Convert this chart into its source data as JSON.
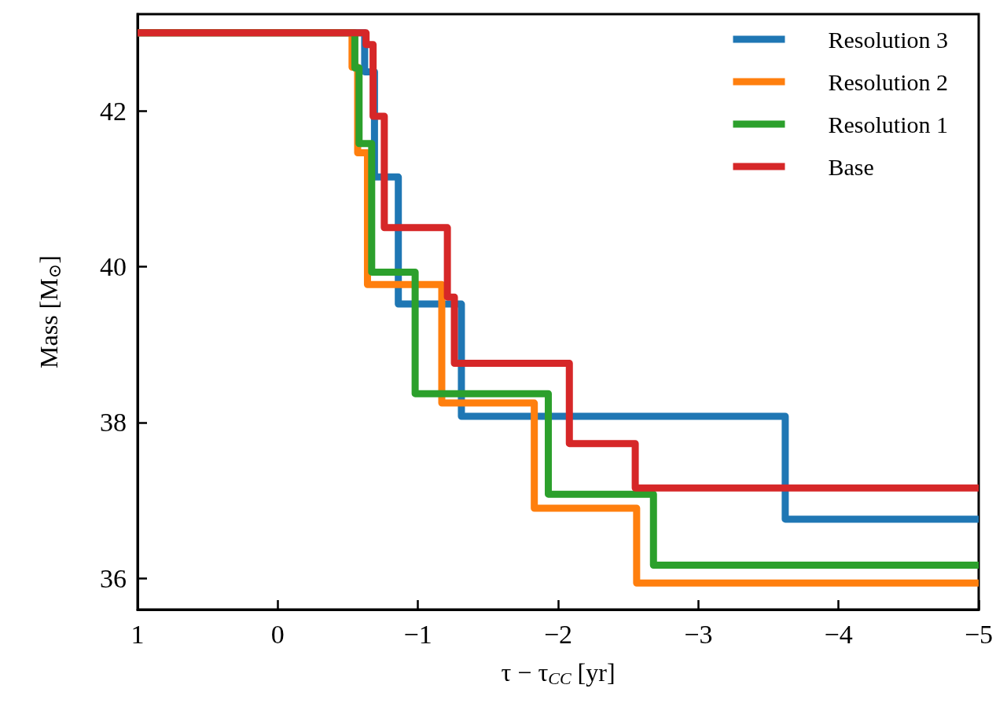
{
  "chart_data": {
    "type": "step",
    "xlabel": "τ − τ$_{CC}$ [yr]",
    "ylabel": "Mass [M$_{⊙}$]",
    "xlim": [
      1,
      -5
    ],
    "ylim": [
      35.6,
      43.24
    ],
    "xticks": [
      1,
      0,
      {
        "value": -1,
        "label": "−1"
      },
      {
        "value": -2,
        "label": "−2"
      },
      {
        "value": -3,
        "label": "−3"
      },
      {
        "value": -4,
        "label": "−4"
      },
      {
        "value": -5,
        "label": "−5"
      }
    ],
    "yticks": [
      36,
      38,
      40,
      42
    ],
    "legend": "top right",
    "marker": "none",
    "series": [
      {
        "name": "Resolution 3",
        "color": "#1f77b4",
        "x": [
          1,
          -0.62,
          -0.69,
          -0.86,
          -1.31,
          -3.62,
          -5
        ],
        "values": [
          43.0,
          42.5,
          41.15,
          39.52,
          38.08,
          36.76,
          36.76
        ]
      },
      {
        "name": "Resolution 2",
        "color": "#ff7f0e",
        "x": [
          1,
          -0.53,
          -0.57,
          -0.64,
          -1.17,
          -1.83,
          -2.56,
          -5
        ],
        "values": [
          43.0,
          42.56,
          41.46,
          39.77,
          38.25,
          36.9,
          35.94,
          35.94
        ]
      },
      {
        "name": "Resolution 1",
        "color": "#2ca02c",
        "x": [
          1,
          -0.55,
          -0.58,
          -0.67,
          -0.98,
          -1.93,
          -2.68,
          -5
        ],
        "values": [
          43.0,
          42.55,
          41.58,
          39.93,
          38.37,
          37.08,
          36.17,
          36.17
        ]
      },
      {
        "name": "Base",
        "color": "#d62728",
        "x": [
          1,
          -0.63,
          -0.68,
          -0.76,
          -1.21,
          -1.26,
          -2.08,
          -2.55,
          -5
        ],
        "values": [
          43.0,
          42.85,
          41.93,
          40.5,
          39.61,
          38.76,
          37.73,
          37.16,
          37.16
        ]
      }
    ]
  }
}
